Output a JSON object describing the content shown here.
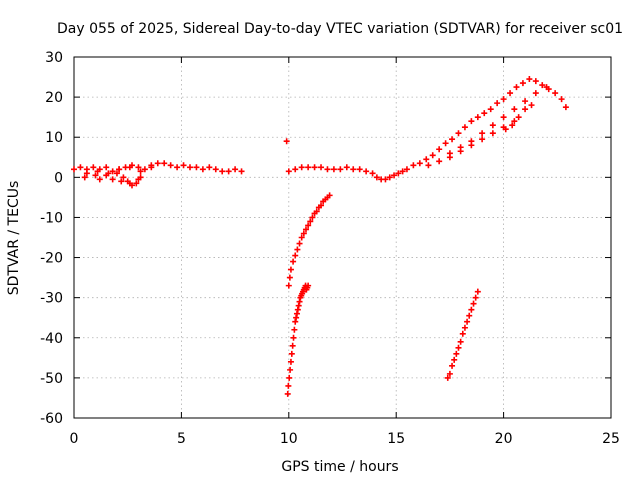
{
  "chart_data": {
    "type": "scatter",
    "title": "Day 055 of 2025, Sidereal Day-to-day VTEC variation (SDTVAR) for receiver sc01",
    "xlabel": "GPS time / hours",
    "ylabel": "SDTVAR / TECUs",
    "xlim": [
      0,
      25
    ],
    "ylim": [
      -60,
      30
    ],
    "xticks": [
      "0",
      "5",
      "10",
      "15",
      "20",
      "25"
    ],
    "yticks": [
      "30",
      "20",
      "10",
      "0",
      "-10",
      "-20",
      "-30",
      "-40",
      "-50",
      "-60"
    ],
    "grid": true,
    "marker": "plus",
    "series": [
      {
        "name": "SDTVAR",
        "color": "#ff0000",
        "x": [
          0.0,
          0.3,
          0.6,
          0.9,
          1.2,
          1.5,
          1.8,
          2.1,
          2.4,
          2.7,
          3.0,
          3.3,
          3.6,
          3.9,
          4.2,
          4.5,
          4.8,
          5.1,
          5.4,
          5.7,
          6.0,
          6.3,
          6.6,
          6.9,
          7.2,
          7.5,
          7.8,
          0.5,
          1.0,
          1.5,
          2.0,
          2.3,
          2.5,
          2.7,
          2.9,
          3.1,
          0.6,
          1.1,
          1.6,
          2.1,
          2.6,
          3.1,
          3.6,
          1.2,
          1.8,
          2.2,
          2.6,
          3.0,
          9.9,
          10.0,
          10.3,
          10.6,
          10.9,
          11.2,
          11.5,
          11.8,
          12.1,
          12.4,
          12.7,
          13.0,
          13.3,
          13.6,
          13.9,
          14.1,
          14.3,
          14.5,
          14.7,
          14.9,
          15.1,
          15.3,
          15.5,
          15.8,
          16.1,
          16.4,
          16.7,
          17.0,
          17.3,
          17.6,
          17.9,
          18.2,
          18.5,
          18.8,
          19.1,
          19.4,
          19.7,
          20.0,
          20.3,
          20.6,
          20.9,
          21.2,
          21.5,
          21.8,
          22.1,
          22.4,
          22.7,
          22.9,
          16.5,
          17.0,
          17.5,
          18.0,
          18.5,
          19.0,
          19.5,
          20.0,
          20.5,
          17.5,
          18.0,
          18.5,
          19.0,
          19.5,
          20.0,
          20.5,
          21.0,
          21.5,
          22.0,
          20.1,
          20.4,
          20.7,
          21.0,
          21.3,
          10.0,
          10.05,
          10.1,
          10.2,
          10.3,
          10.4,
          10.5,
          10.6,
          10.7,
          10.8,
          10.9,
          11.0,
          11.1,
          11.2,
          11.3,
          11.4,
          11.5,
          11.6,
          11.7,
          11.8,
          11.9,
          9.95,
          9.98,
          10.02,
          10.06,
          10.1,
          10.14,
          10.18,
          10.22,
          10.26,
          10.3,
          10.34,
          10.38,
          10.42,
          10.46,
          10.5,
          10.54,
          10.58,
          10.62,
          10.66,
          10.7,
          10.74,
          10.78,
          10.82,
          10.86,
          10.9,
          17.4,
          17.5,
          17.6,
          17.7,
          17.8,
          17.9,
          18.0,
          18.1,
          18.2,
          18.3,
          18.4,
          18.5,
          18.6,
          18.7,
          18.8
        ],
        "y": [
          2,
          2.5,
          2,
          2.5,
          2,
          2.5,
          1.5,
          2,
          2.5,
          3,
          2.5,
          2,
          3,
          3.5,
          3.5,
          3,
          2.5,
          3,
          2.5,
          2.5,
          2,
          2.5,
          2,
          1.5,
          1.5,
          2,
          1.5,
          0,
          0.5,
          0.5,
          1,
          0,
          -1,
          -2,
          -1.5,
          0,
          1,
          1.5,
          1,
          2,
          2.5,
          1.5,
          2.5,
          -0.5,
          -0.5,
          -1,
          -1.5,
          -0.5,
          9,
          1.5,
          2,
          2.5,
          2.5,
          2.5,
          2.5,
          2,
          2,
          2,
          2.5,
          2,
          2,
          1.5,
          1,
          0,
          -0.5,
          -0.5,
          0,
          0.5,
          1,
          1.5,
          2,
          3,
          3.5,
          4.5,
          5.5,
          7,
          8.5,
          9.5,
          11,
          12.5,
          14,
          15,
          16,
          17,
          18.5,
          19.5,
          21,
          22.5,
          23.5,
          24.5,
          24,
          23,
          22,
          21,
          19.5,
          17.5,
          3,
          4,
          5,
          6.5,
          8,
          9.5,
          11,
          12.5,
          14,
          6,
          7.5,
          9,
          11,
          13,
          15,
          17,
          19,
          21,
          22.5,
          12,
          13,
          15,
          17,
          18,
          -27,
          -25,
          -23,
          -21,
          -19.5,
          -18,
          -16.5,
          -15,
          -14,
          -13,
          -12,
          -11,
          -10,
          -9,
          -8.5,
          -7.5,
          -7,
          -6,
          -5.5,
          -5,
          -4.5,
          -54,
          -52,
          -50,
          -48,
          -46,
          -44,
          -42,
          -40,
          -38,
          -36,
          -35,
          -34,
          -33,
          -32,
          -31,
          -30,
          -29.5,
          -29,
          -28.5,
          -28,
          -27.5,
          -27,
          -28,
          -27.5,
          -27,
          -50,
          -49,
          -47,
          -45.5,
          -44,
          -42.5,
          -41,
          -39,
          -37.5,
          -36,
          -34.5,
          -33,
          -31.5,
          -30,
          -28.5
        ]
      }
    ]
  }
}
